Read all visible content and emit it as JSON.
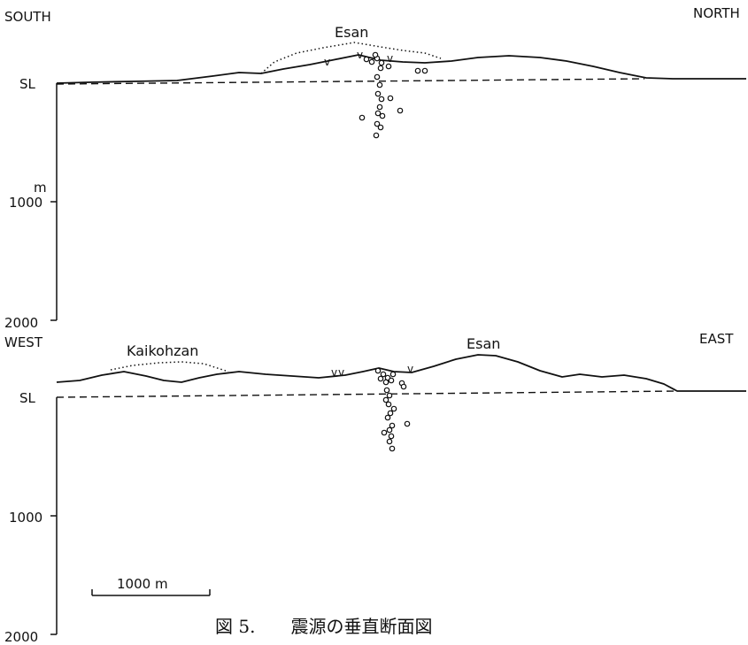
{
  "section_ns": {
    "left_dir": "SOUTH",
    "right_dir": "NORTH",
    "peak": "Esan",
    "sea_level": "SL",
    "depth_unit": "m",
    "depth_ticks": [
      "1000",
      "2000"
    ]
  },
  "section_we": {
    "left_dir": "WEST",
    "right_dir": "EAST",
    "peak_left": "Kaikohzan",
    "peak_right": "Esan",
    "sea_level": "SL",
    "depth_ticks": [
      "1000",
      "2000"
    ]
  },
  "scale_bar": {
    "label": "1000 m"
  },
  "caption": "図 5.　　震源の垂直断面図",
  "vent_symbol": "v"
}
